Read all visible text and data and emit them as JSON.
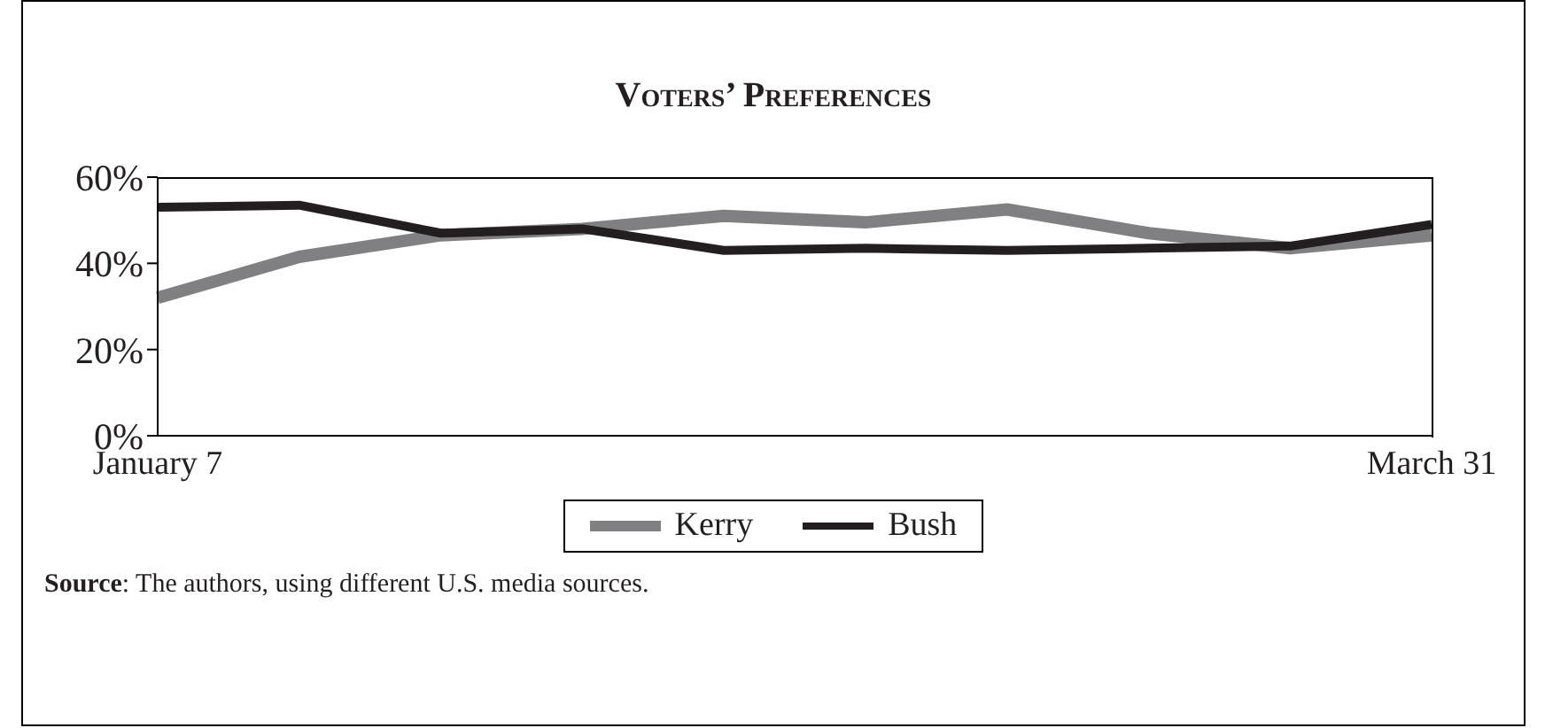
{
  "chart_data": {
    "type": "line",
    "title": "Voters’ Preferences",
    "categories": [
      "January 7",
      null,
      null,
      null,
      null,
      null,
      null,
      null,
      null,
      "March 31"
    ],
    "series": [
      {
        "name": "Kerry",
        "color": "#808083",
        "values": [
          32,
          41.5,
          46.5,
          48,
          51,
          49.5,
          52.5,
          47,
          43.5,
          46.5
        ]
      },
      {
        "name": "Bush",
        "color": "#231f20",
        "values": [
          53,
          53.5,
          47,
          48,
          43,
          43.5,
          43,
          43.5,
          44,
          49
        ]
      }
    ],
    "ylim": [
      0,
      60
    ],
    "yticks": [
      {
        "value": 0,
        "label": "0%"
      },
      {
        "value": 20,
        "label": "20%"
      },
      {
        "value": 40,
        "label": "40%"
      },
      {
        "value": 60,
        "label": "60%"
      }
    ],
    "grid": false,
    "legend": "bottom",
    "marker": "none",
    "line_style": "solid",
    "annotations": [
      "Source: The authors, using different U.S. media sources."
    ]
  }
}
